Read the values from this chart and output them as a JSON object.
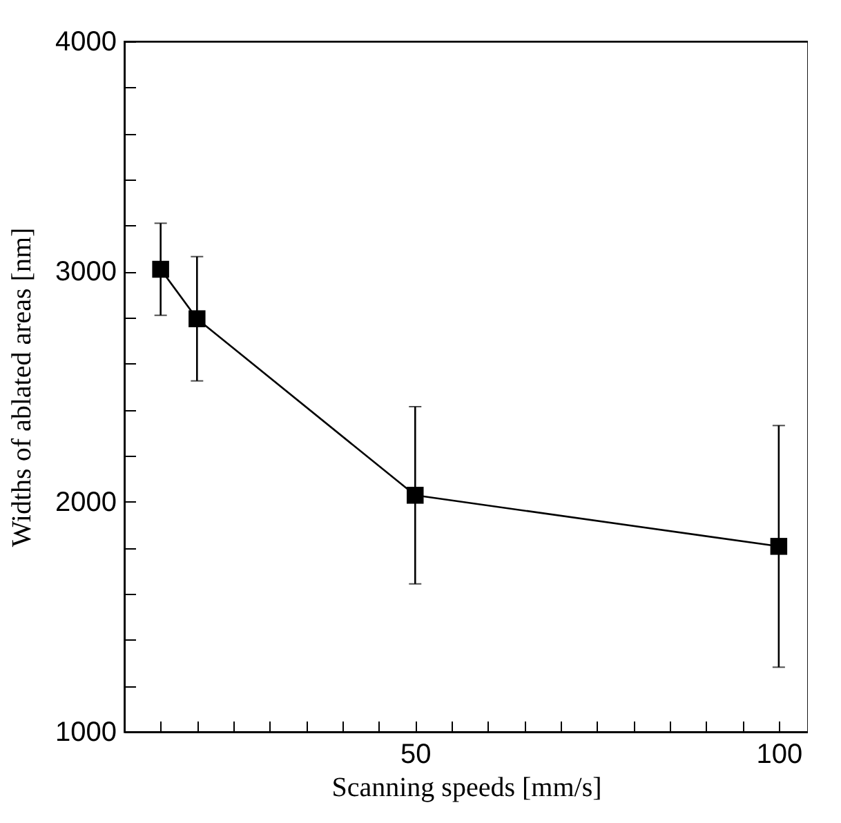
{
  "chart_data": {
    "type": "line",
    "xlabel": "Scanning speeds [mm/s]",
    "ylabel": "Widths of ablated areas [nm]",
    "x": [
      15,
      20,
      50,
      100
    ],
    "series": [
      {
        "color": "#000000",
        "values": [
          3010,
          2795,
          2028,
          1806
        ],
        "errors": [
          200,
          270,
          385,
          525
        ]
      }
    ],
    "marker": "square",
    "line_style": "solid",
    "grid": false,
    "xlim": [
      10,
      104
    ],
    "ylim": [
      1000,
      4000
    ],
    "xticks": [
      {
        "value": 10,
        "label": null
      },
      {
        "value": 15,
        "label": null
      },
      {
        "value": 20,
        "label": null
      },
      {
        "value": 25,
        "label": null
      },
      {
        "value": 30,
        "label": null
      },
      {
        "value": 35,
        "label": null
      },
      {
        "value": 40,
        "label": null
      },
      {
        "value": 45,
        "label": null
      },
      50,
      {
        "value": 55,
        "label": null
      },
      {
        "value": 60,
        "label": null
      },
      {
        "value": 65,
        "label": null
      },
      {
        "value": 70,
        "label": null
      },
      {
        "value": 75,
        "label": null
      },
      {
        "value": 80,
        "label": null
      },
      {
        "value": 85,
        "label": null
      },
      {
        "value": 90,
        "label": null
      },
      {
        "value": 95,
        "label": null
      },
      100
    ],
    "yticks": [
      1000,
      {
        "value": 1200,
        "label": null
      },
      {
        "value": 1400,
        "label": null
      },
      {
        "value": 1600,
        "label": null
      },
      {
        "value": 1800,
        "label": null
      },
      2000,
      {
        "value": 2200,
        "label": null
      },
      {
        "value": 2400,
        "label": null
      },
      {
        "value": 2600,
        "label": null
      },
      {
        "value": 2800,
        "label": null
      },
      3000,
      {
        "value": 3200,
        "label": null
      },
      {
        "value": 3400,
        "label": null
      },
      {
        "value": 3600,
        "label": null
      },
      {
        "value": 3800,
        "label": null
      },
      4000
    ]
  }
}
